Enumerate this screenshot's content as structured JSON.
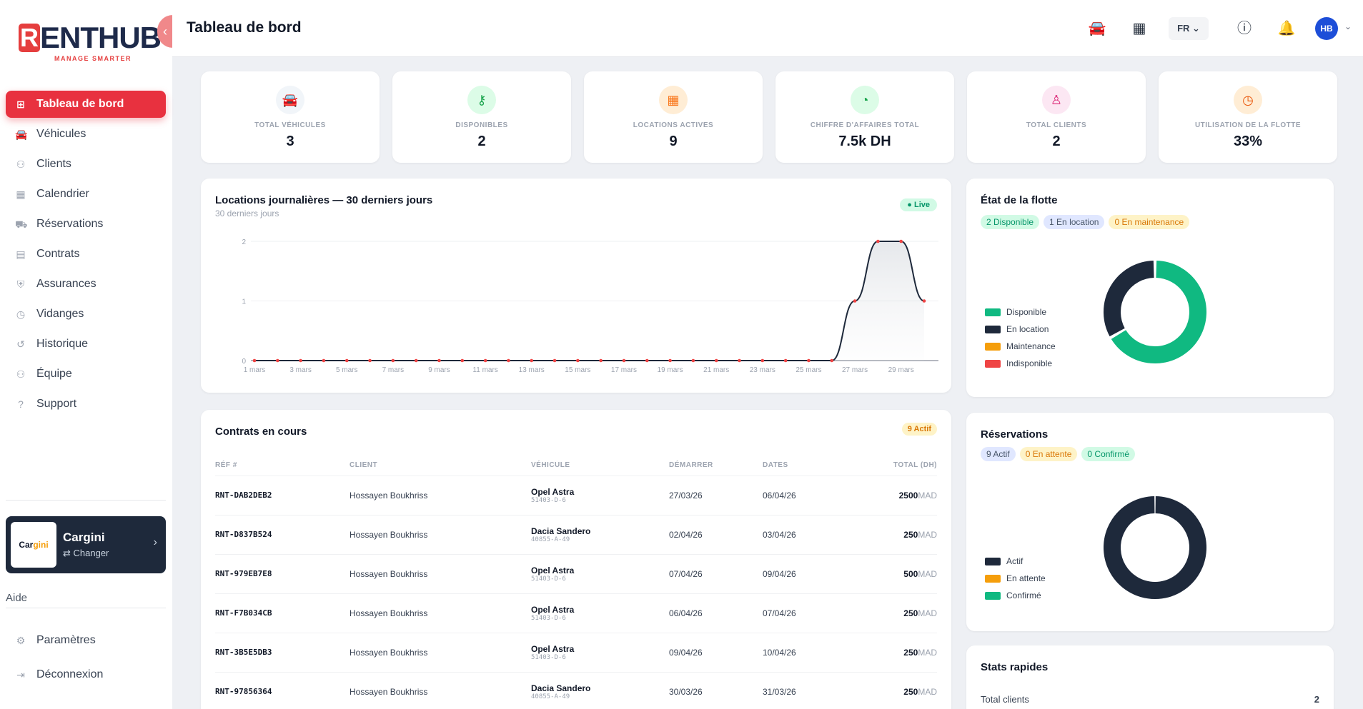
{
  "brand": {
    "mark": "R",
    "name": "ENTHUB",
    "tagline": "MANAGE SMARTER"
  },
  "nav": [
    {
      "label": "Tableau de bord",
      "icon": "dashboard-icon",
      "active": true
    },
    {
      "label": "Véhicules",
      "icon": "car-icon"
    },
    {
      "label": "Clients",
      "icon": "users-icon"
    },
    {
      "label": "Calendrier",
      "icon": "calendar-icon"
    },
    {
      "label": "Réservations",
      "icon": "reservation-icon"
    },
    {
      "label": "Contrats",
      "icon": "document-icon"
    },
    {
      "label": "Assurances",
      "icon": "insurance-icon"
    },
    {
      "label": "Vidanges",
      "icon": "gauge-icon"
    },
    {
      "label": "Historique",
      "icon": "history-icon"
    },
    {
      "label": "Équipe",
      "icon": "team-icon"
    },
    {
      "label": "Support",
      "icon": "help-icon"
    }
  ],
  "company": {
    "logo_text_1": "Car",
    "logo_text_2": "gini",
    "name": "Cargini",
    "change": "⇄ Changer"
  },
  "aide": "Aide",
  "bottom_nav": [
    {
      "label": "Paramètres",
      "icon": "settings-icon"
    },
    {
      "label": "Déconnexion",
      "icon": "logout-icon"
    }
  ],
  "topbar": {
    "title": "Tableau de bord",
    "lang": "FR",
    "avatar": "HB"
  },
  "stats": [
    {
      "label": "TOTAL VÉHICULES",
      "value": "3",
      "icon": "car-icon",
      "bg": "#f1f5f9",
      "fg": "#475569",
      "glyph": "🚘"
    },
    {
      "label": "DISPONIBLES",
      "value": "2",
      "icon": "key-icon",
      "bg": "#dcfce7",
      "fg": "#16a34a",
      "glyph": "⚷"
    },
    {
      "label": "LOCATIONS ACTIVES",
      "value": "9",
      "icon": "calendar-icon",
      "bg": "#ffedd5",
      "fg": "#f97316",
      "glyph": "▦"
    },
    {
      "label": "CHIFFRE D'AFFAIRES TOTAL",
      "value": "7.5k DH",
      "icon": "revenue-icon",
      "bg": "#dcfce7",
      "fg": "#16a34a",
      "glyph": "◔"
    },
    {
      "label": "TOTAL CLIENTS",
      "value": "2",
      "icon": "user-add-icon",
      "bg": "#fce7f3",
      "fg": "#db2777",
      "glyph": "♙"
    },
    {
      "label": "UTILISATION DE LA FLOTTE",
      "value": "33%",
      "icon": "speed-icon",
      "bg": "#ffedd5",
      "fg": "#ea580c",
      "glyph": "◷"
    }
  ],
  "daily": {
    "title": "Locations journalières — 30 derniers jours",
    "subtitle": "30 derniers jours",
    "live": "● Live"
  },
  "chart_data": {
    "type": "area",
    "x": [
      "1 mars",
      "2 mars",
      "3 mars",
      "4 mars",
      "5 mars",
      "6 mars",
      "7 mars",
      "8 mars",
      "9 mars",
      "10 mars",
      "11 mars",
      "12 mars",
      "13 mars",
      "14 mars",
      "15 mars",
      "16 mars",
      "17 mars",
      "18 mars",
      "19 mars",
      "20 mars",
      "21 mars",
      "22 mars",
      "23 mars",
      "24 mars",
      "25 mars",
      "26 mars",
      "27 mars",
      "28 mars",
      "29 mars",
      "30 mars"
    ],
    "tick_labels": [
      "1 mars",
      "3 mars",
      "5 mars",
      "7 mars",
      "9 mars",
      "11 mars",
      "13 mars",
      "15 mars",
      "17 mars",
      "19 mars",
      "21 mars",
      "23 mars",
      "25 mars",
      "27 mars",
      "29 mars"
    ],
    "values": [
      0,
      0,
      0,
      0,
      0,
      0,
      0,
      0,
      0,
      0,
      0,
      0,
      0,
      0,
      0,
      0,
      0,
      0,
      0,
      0,
      0,
      0,
      0,
      0,
      0,
      0,
      1,
      2,
      2,
      1
    ],
    "ylim": [
      0,
      2
    ],
    "yticks": [
      "0",
      "1",
      "2"
    ],
    "grid": true
  },
  "fleet": {
    "title": "État de la flotte",
    "badges": [
      {
        "text": "2 Disponible",
        "cls": "b-green"
      },
      {
        "text": "1 En location",
        "cls": "b-blue"
      },
      {
        "text": "0 En maintenance",
        "cls": "b-orange"
      }
    ],
    "legend": [
      {
        "label": "Disponible",
        "color": "#10b981"
      },
      {
        "label": "En location",
        "color": "#1e293b"
      },
      {
        "label": "Maintenance",
        "color": "#f59e0b"
      },
      {
        "label": "Indisponible",
        "color": "#ef4444"
      }
    ],
    "donut": [
      {
        "value": 2,
        "color": "#10b981"
      },
      {
        "value": 1,
        "color": "#1e293b"
      }
    ]
  },
  "reservations": {
    "title": "Réservations",
    "badges": [
      {
        "text": "9 Actif",
        "cls": "b-blue"
      },
      {
        "text": "0 En attente",
        "cls": "b-orange"
      },
      {
        "text": "0 Confirmé",
        "cls": "b-green"
      }
    ],
    "legend": [
      {
        "label": "Actif",
        "color": "#1e293b"
      },
      {
        "label": "En attente",
        "color": "#f59e0b"
      },
      {
        "label": "Confirmé",
        "color": "#10b981"
      }
    ],
    "donut": [
      {
        "value": 9,
        "color": "#1e293b"
      }
    ]
  },
  "contracts": {
    "title": "Contrats en cours",
    "badge": "9 Actif",
    "headers": [
      "RÉF #",
      "CLIENT",
      "VÉHICULE",
      "DÉMARRER",
      "DATES",
      "TOTAL (DH)"
    ],
    "rows": [
      {
        "ref": "RNT-DAB2DEB2",
        "client": "Hossayen Boukhriss",
        "vehicle": "Opel Astra",
        "plate": "51403-D-6",
        "start": "27/03/26",
        "end": "06/04/26",
        "total": "2500",
        "cur": "MAD"
      },
      {
        "ref": "RNT-D837B524",
        "client": "Hossayen Boukhriss",
        "vehicle": "Dacia Sandero",
        "plate": "40855-A-49",
        "start": "02/04/26",
        "end": "03/04/26",
        "total": "250",
        "cur": "MAD"
      },
      {
        "ref": "RNT-979EB7E8",
        "client": "Hossayen Boukhriss",
        "vehicle": "Opel Astra",
        "plate": "51403-D-6",
        "start": "07/04/26",
        "end": "09/04/26",
        "total": "500",
        "cur": "MAD"
      },
      {
        "ref": "RNT-F7B034CB",
        "client": "Hossayen Boukhriss",
        "vehicle": "Opel Astra",
        "plate": "51403-D-6",
        "start": "06/04/26",
        "end": "07/04/26",
        "total": "250",
        "cur": "MAD"
      },
      {
        "ref": "RNT-3B5E5DB3",
        "client": "Hossayen Boukhriss",
        "vehicle": "Opel Astra",
        "plate": "51403-D-6",
        "start": "09/04/26",
        "end": "10/04/26",
        "total": "250",
        "cur": "MAD"
      },
      {
        "ref": "RNT-97856364",
        "client": "Hossayen Boukhriss",
        "vehicle": "Dacia Sandero",
        "plate": "40855-A-49",
        "start": "30/03/26",
        "end": "31/03/26",
        "total": "250",
        "cur": "MAD"
      }
    ]
  },
  "quick": {
    "title": "Stats rapides",
    "rows": [
      {
        "label": "Total clients",
        "value": "2"
      }
    ]
  }
}
